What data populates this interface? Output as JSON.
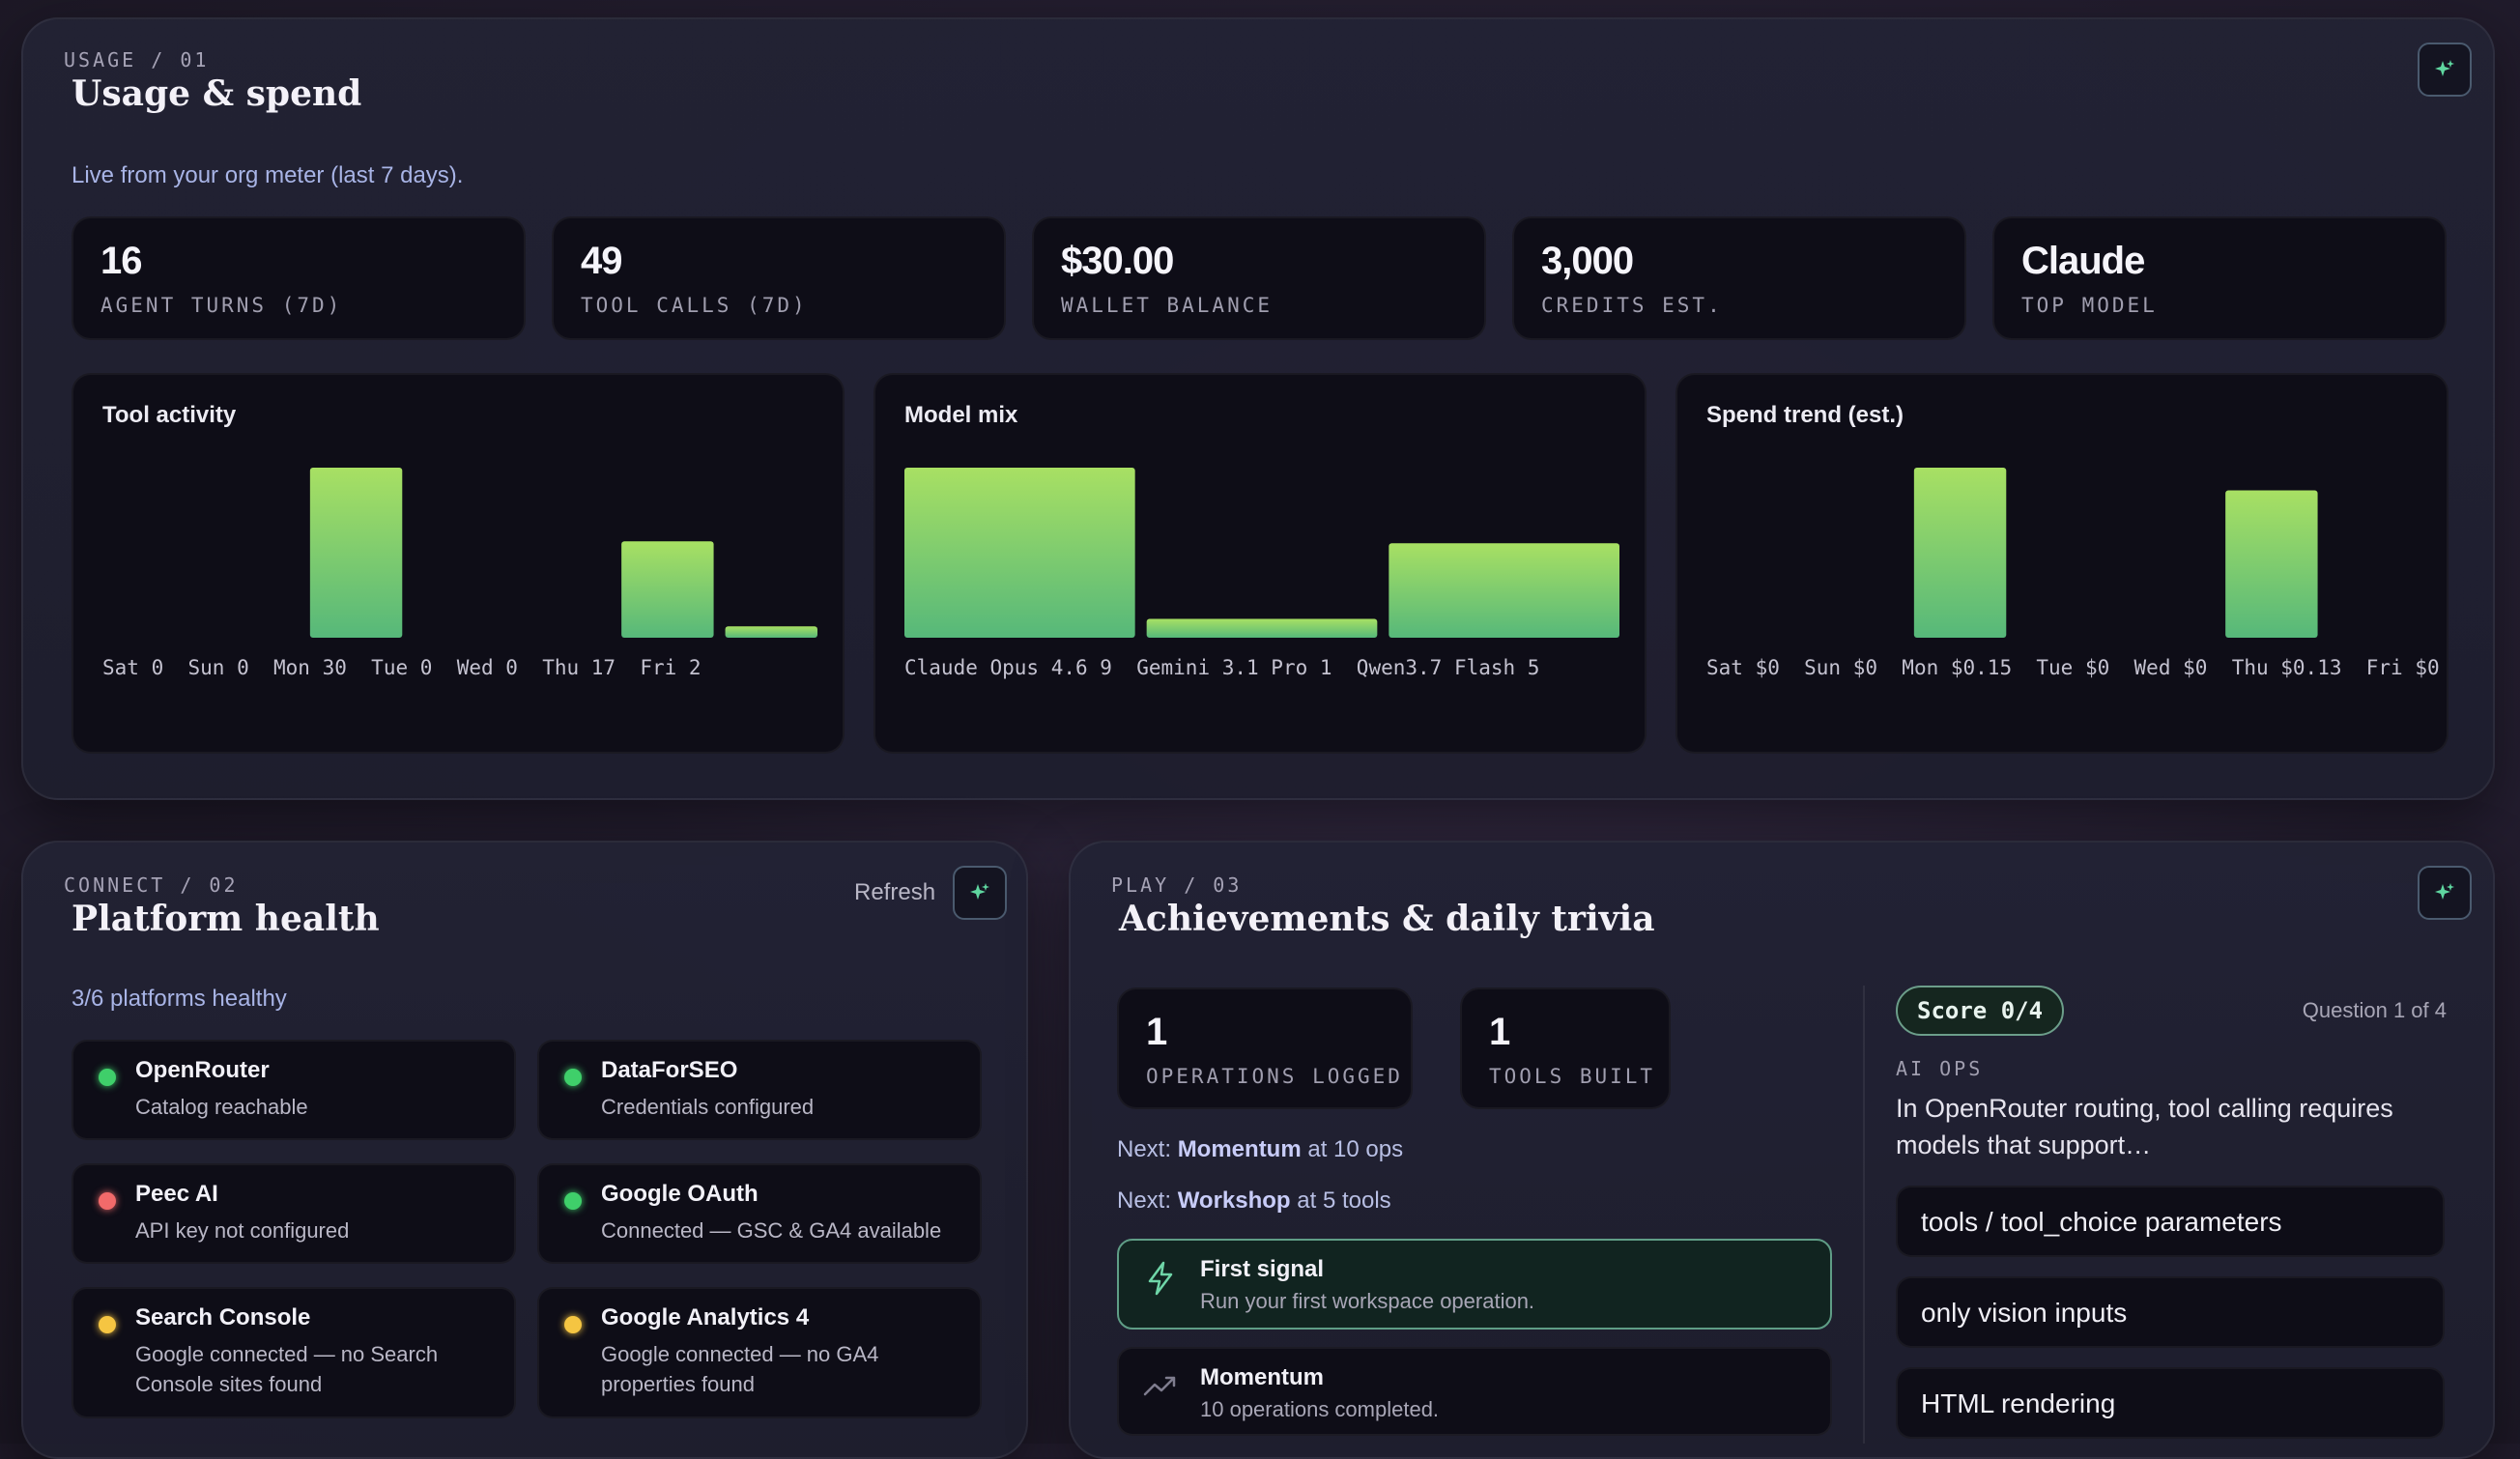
{
  "usage": {
    "eyebrow": "USAGE / 01",
    "title": "Usage & spend",
    "subtitle": "Live from your org meter (last 7 days).",
    "action_icon": "sparkle-icon",
    "stats": [
      {
        "value": "16",
        "label": "AGENT TURNS (7D)"
      },
      {
        "value": "49",
        "label": "TOOL CALLS (7D)"
      },
      {
        "value": "$30.00",
        "label": "WALLET BALANCE"
      },
      {
        "value": "3,000",
        "label": "CREDITS EST."
      },
      {
        "value": "Claude",
        "label": "TOP MODEL"
      }
    ]
  },
  "chart_data": [
    {
      "type": "bar",
      "title": "Tool activity",
      "categories": [
        "Sat",
        "Sun",
        "Mon",
        "Tue",
        "Wed",
        "Thu",
        "Fri"
      ],
      "values": [
        0,
        0,
        30,
        0,
        0,
        17,
        2
      ],
      "tick_labels": [
        "Sat 0",
        "Sun 0",
        "Mon 30",
        "Tue 0",
        "Wed 0",
        "Thu 17",
        "Fri 2"
      ]
    },
    {
      "type": "bar",
      "title": "Model mix",
      "categories": [
        "Claude Opus 4.6",
        "Gemini 3.1 Pro",
        "Qwen3.7 Flash"
      ],
      "values": [
        9,
        1,
        5
      ],
      "tick_labels": [
        "Claude Opus 4.6 9",
        "Gemini 3.1 Pro 1",
        "Qwen3.7 Flash 5"
      ]
    },
    {
      "type": "bar",
      "title": "Spend trend (est.)",
      "categories": [
        "Sat",
        "Sun",
        "Mon",
        "Tue",
        "Wed",
        "Thu",
        "Fri"
      ],
      "values": [
        0,
        0,
        0.15,
        0,
        0,
        0.13,
        0
      ],
      "tick_labels": [
        "Sat $0",
        "Sun $0",
        "Mon $0.15",
        "Tue $0",
        "Wed $0",
        "Thu $0.13",
        "Fri $0"
      ]
    }
  ],
  "connect": {
    "eyebrow": "CONNECT / 02",
    "title": "Platform health",
    "refresh_label": "Refresh",
    "action_icon": "sparkle-icon",
    "summary": "3/6 platforms healthy",
    "platforms": [
      {
        "name": "OpenRouter",
        "status": "Catalog reachable",
        "color": "#3fcf6a"
      },
      {
        "name": "DataForSEO",
        "status": "Credentials configured",
        "color": "#3fcf6a"
      },
      {
        "name": "Peec AI",
        "status": "API key not configured",
        "color": "#f26a6a"
      },
      {
        "name": "Google OAuth",
        "status": "Connected — GSC & GA4 available",
        "color": "#3fcf6a"
      },
      {
        "name": "Search Console",
        "status": "Google connected — no Search Console sites found",
        "color": "#f5c542"
      },
      {
        "name": "Google Analytics 4",
        "status": "Google connected — no GA4 properties found",
        "color": "#f5c542"
      }
    ]
  },
  "play": {
    "eyebrow": "PLAY / 03",
    "title": "Achievements & daily trivia",
    "action_icon": "sparkle-icon",
    "stats": [
      {
        "value": "1",
        "label": "OPERATIONS LOGGED"
      },
      {
        "value": "1",
        "label": "TOOLS BUILT"
      }
    ],
    "next": [
      {
        "prefix": "Next:",
        "name": "Momentum",
        "suffix": "at 10 ops"
      },
      {
        "prefix": "Next:",
        "name": "Workshop",
        "suffix": "at 5 tools"
      }
    ],
    "achievements": [
      {
        "title": "First signal",
        "desc": "Run your first workspace operation.",
        "icon": "lightning-icon",
        "unlocked": true
      },
      {
        "title": "Momentum",
        "desc": "10 operations completed.",
        "icon": "trend-up-icon",
        "unlocked": false
      }
    ],
    "trivia": {
      "score": "Score 0/4",
      "progress": "Question 1 of 4",
      "category": "AI OPS",
      "question": "In OpenRouter routing, tool calling requires models that support…",
      "answers": [
        "tools / tool_choice parameters",
        "only vision inputs",
        "HTML rendering"
      ]
    }
  },
  "colors": {
    "accent": "#a8e063",
    "accent_bottom": "#56b87a",
    "panel": "#22223a",
    "card": "#0e0d17"
  }
}
